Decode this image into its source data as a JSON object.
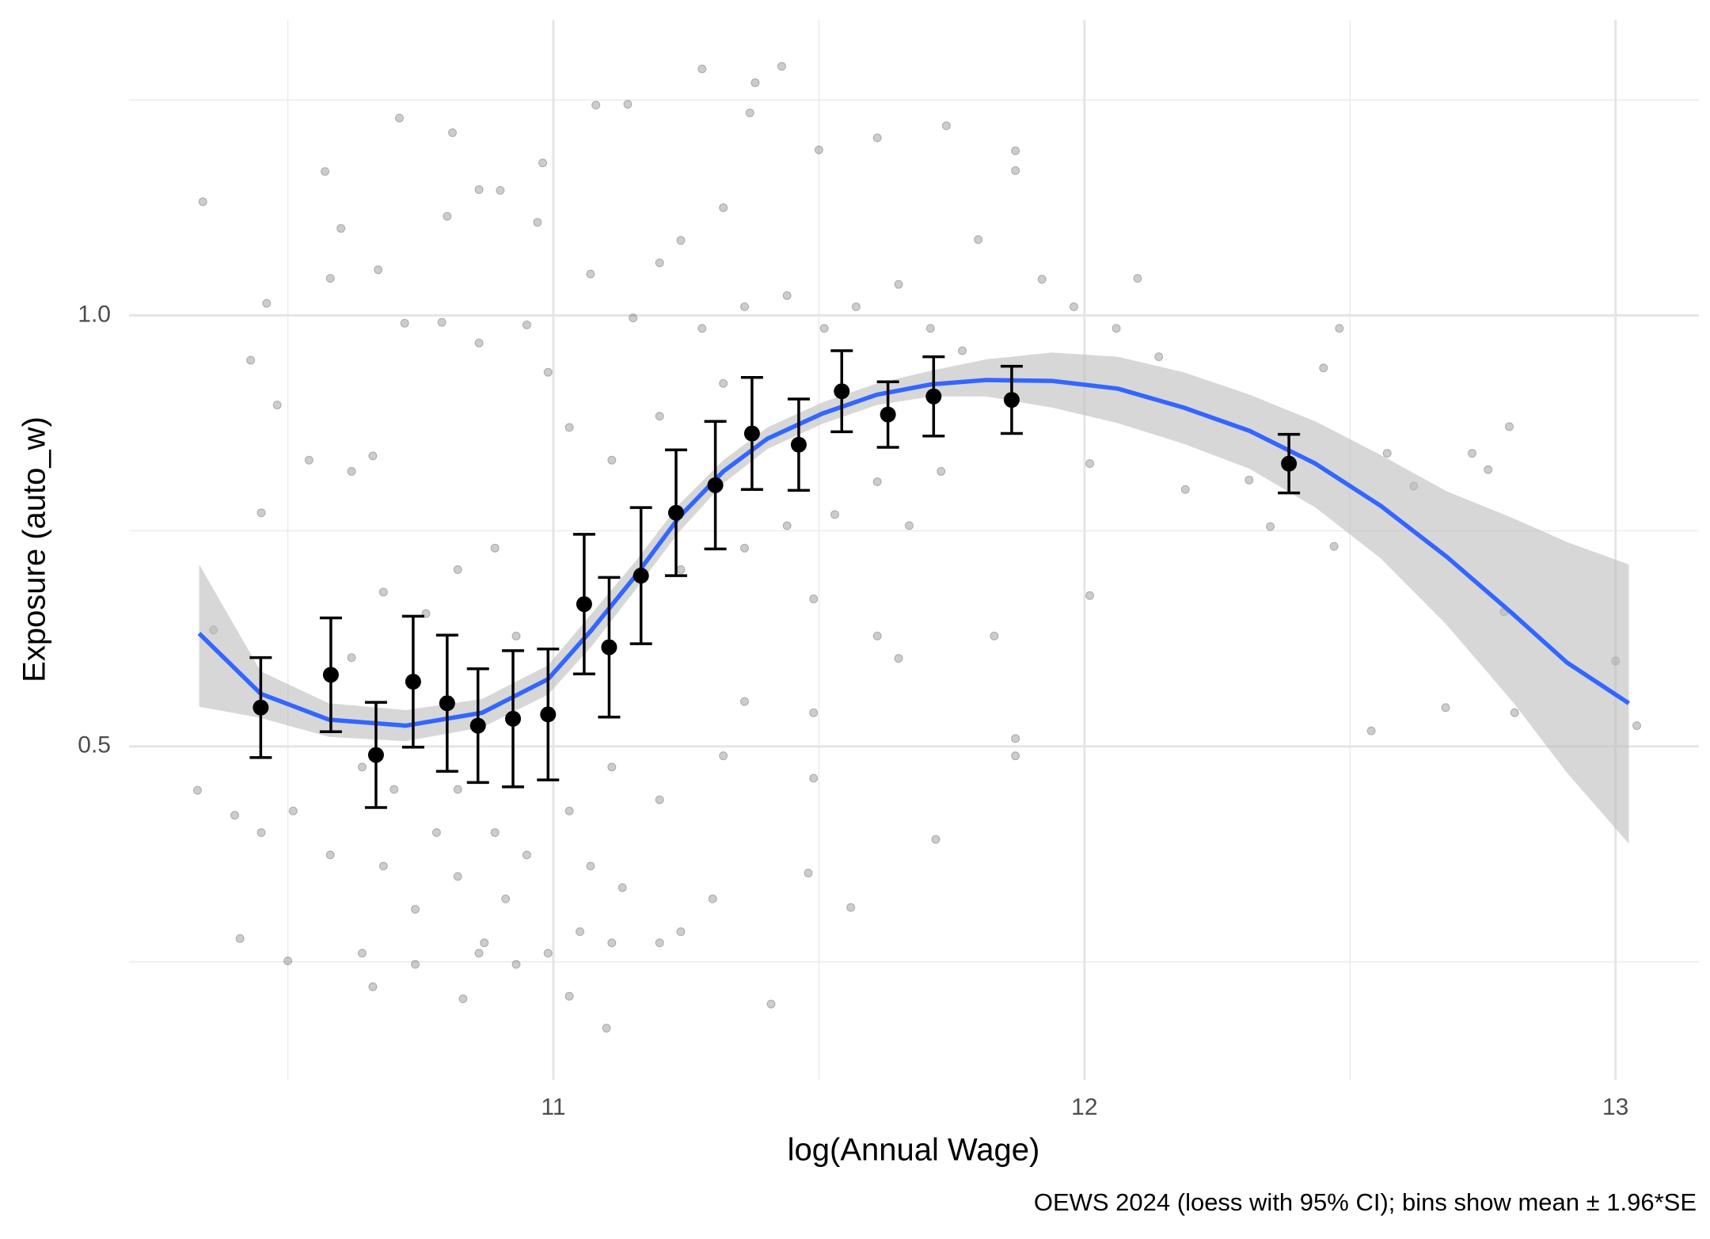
{
  "chart_data": {
    "type": "scatter",
    "x_label": "log(Annual Wage)",
    "y_label": "Exposure (auto_w)",
    "caption": "OEWS 2024 (loess with 95% CI); bins show mean ± 1.96*SE",
    "xlim": [
      10.201,
      13.157
    ],
    "ylim": [
      0.113,
      1.343
    ],
    "xticks": [
      11,
      12,
      13
    ],
    "yticks": [
      0.5,
      {
        "value": 1,
        "label": "1.0"
      }
    ],
    "minor_xticks": [
      10.5,
      11.5,
      12.5
    ],
    "minor_yticks": [
      0.25,
      0.75,
      1.25
    ],
    "grid": true,
    "point_color": "#000000",
    "curve_color": "#3366ff",
    "ribbon_color": "#bdbdbd",
    "bin_color": "#000000",
    "points": {
      "x": [
        10.34,
        10.43,
        10.46,
        10.57,
        10.58,
        10.6,
        10.67,
        10.71,
        10.81,
        10.8,
        10.86,
        10.9,
        10.97,
        10.98,
        11.08,
        11.14,
        11.28,
        11.38,
        11.43,
        11.37,
        11.5,
        11.61,
        11.74,
        11.87,
        11.87,
        11.8,
        11.92,
        11.98,
        12.1,
        12.06,
        12.14,
        12.48,
        12.45,
        12.57,
        12.73,
        12.8,
        12.76,
        12.62,
        12.47,
        12.35,
        12.31,
        12.19,
        12.01,
        12.01,
        12.79,
        12.68,
        12.81,
        13.0,
        13.04,
        12.54,
        11.87,
        11.87,
        11.83,
        11.72,
        11.56,
        11.41,
        11.1,
        11.03,
        10.83,
        10.5,
        10.41,
        10.33,
        10.36,
        10.48,
        10.45,
        10.54,
        10.62,
        10.66,
        10.72,
        10.79,
        10.86,
        10.95,
        10.99,
        11.03,
        11.07,
        11.15,
        11.2,
        11.24,
        11.28,
        11.32,
        11.36,
        11.44,
        11.51,
        11.57,
        11.65,
        11.71,
        11.77,
        11.11,
        11.2,
        11.32,
        11.44,
        11.53,
        11.61,
        11.67,
        11.73,
        11.49,
        11.61,
        11.65,
        11.36,
        11.49,
        11.49,
        11.48,
        11.3,
        11.24,
        11.2,
        11.13,
        11.07,
        10.99,
        10.95,
        10.91,
        10.87,
        10.82,
        10.78,
        10.74,
        10.68,
        10.64,
        10.58,
        10.51,
        10.45,
        10.4,
        10.64,
        10.7,
        10.76,
        10.82,
        10.68,
        10.62,
        10.89,
        10.93,
        11.03,
        11.11,
        11.2,
        11.32,
        11.24,
        11.36,
        10.82,
        10.89,
        10.74,
        10.66,
        10.93,
        10.86,
        11.11,
        11.05
      ],
      "y": [
        1.132,
        0.948,
        1.014,
        1.167,
        1.043,
        1.101,
        1.053,
        1.229,
        1.212,
        1.115,
        1.146,
        1.145,
        1.108,
        1.177,
        1.244,
        1.245,
        1.286,
        1.27,
        1.289,
        1.235,
        1.192,
        1.206,
        1.22,
        1.191,
        1.168,
        1.088,
        1.042,
        1.01,
        1.043,
        0.985,
        0.952,
        0.985,
        0.939,
        0.84,
        0.84,
        0.871,
        0.821,
        0.802,
        0.732,
        0.755,
        0.809,
        0.798,
        0.828,
        0.675,
        0.656,
        0.545,
        0.539,
        0.599,
        0.524,
        0.518,
        0.509,
        0.489,
        0.628,
        0.392,
        0.313,
        0.201,
        0.173,
        0.21,
        0.207,
        0.251,
        0.277,
        0.449,
        0.635,
        0.896,
        0.771,
        0.832,
        0.819,
        0.837,
        0.991,
        0.992,
        0.968,
        0.989,
        0.934,
        0.87,
        1.048,
        0.997,
        1.061,
        1.087,
        0.985,
        1.125,
        1.01,
        1.023,
        0.985,
        1.01,
        1.036,
        0.985,
        0.959,
        0.832,
        0.883,
        0.921,
        0.756,
        0.769,
        0.807,
        0.756,
        0.819,
        0.671,
        0.628,
        0.602,
        0.552,
        0.539,
        0.463,
        0.353,
        0.323,
        0.285,
        0.272,
        0.336,
        0.361,
        0.26,
        0.374,
        0.323,
        0.272,
        0.349,
        0.4,
        0.311,
        0.361,
        0.26,
        0.374,
        0.425,
        0.4,
        0.42,
        0.476,
        0.45,
        0.654,
        0.705,
        0.679,
        0.603,
        0.73,
        0.628,
        0.425,
        0.476,
        0.438,
        0.489,
        0.705,
        0.73,
        0.45,
        0.4,
        0.247,
        0.221,
        0.247,
        0.26,
        0.272,
        0.285
      ]
    },
    "bins": {
      "x": [
        10.449,
        10.581,
        10.666,
        10.736,
        10.8,
        10.858,
        10.924,
        10.99,
        11.058,
        11.105,
        11.165,
        11.231,
        11.305,
        11.374,
        11.462,
        11.543,
        11.63,
        11.716,
        11.863,
        12.385
      ],
      "y": [
        0.545,
        0.583,
        0.49,
        0.575,
        0.55,
        0.524,
        0.532,
        0.537,
        0.665,
        0.615,
        0.698,
        0.771,
        0.803,
        0.863,
        0.85,
        0.912,
        0.885,
        0.906,
        0.902,
        0.828
      ],
      "err": [
        0.058,
        0.066,
        0.061,
        0.076,
        0.079,
        0.066,
        0.079,
        0.076,
        0.081,
        0.081,
        0.079,
        0.073,
        0.074,
        0.065,
        0.053,
        0.047,
        0.038,
        0.046,
        0.039,
        0.034
      ]
    },
    "curve": {
      "x": [
        10.333,
        10.449,
        10.577,
        10.722,
        10.866,
        10.99,
        11.072,
        11.155,
        11.237,
        11.32,
        11.403,
        11.506,
        11.609,
        11.712,
        11.815,
        11.939,
        12.063,
        12.187,
        12.311,
        12.435,
        12.558,
        12.682,
        12.806,
        12.909,
        13.025
      ],
      "y": [
        0.631,
        0.561,
        0.531,
        0.524,
        0.539,
        0.578,
        0.635,
        0.698,
        0.766,
        0.819,
        0.857,
        0.886,
        0.908,
        0.92,
        0.925,
        0.924,
        0.915,
        0.893,
        0.866,
        0.828,
        0.779,
        0.72,
        0.654,
        0.597,
        0.55
      ],
      "upper": [
        0.711,
        0.587,
        0.55,
        0.542,
        0.555,
        0.594,
        0.654,
        0.715,
        0.781,
        0.832,
        0.87,
        0.899,
        0.921,
        0.936,
        0.949,
        0.957,
        0.952,
        0.934,
        0.908,
        0.877,
        0.838,
        0.796,
        0.765,
        0.737,
        0.711
      ],
      "lower": [
        0.546,
        0.533,
        0.511,
        0.506,
        0.522,
        0.56,
        0.616,
        0.682,
        0.749,
        0.805,
        0.845,
        0.874,
        0.896,
        0.906,
        0.906,
        0.893,
        0.875,
        0.851,
        0.822,
        0.777,
        0.718,
        0.641,
        0.552,
        0.469,
        0.387
      ]
    }
  }
}
